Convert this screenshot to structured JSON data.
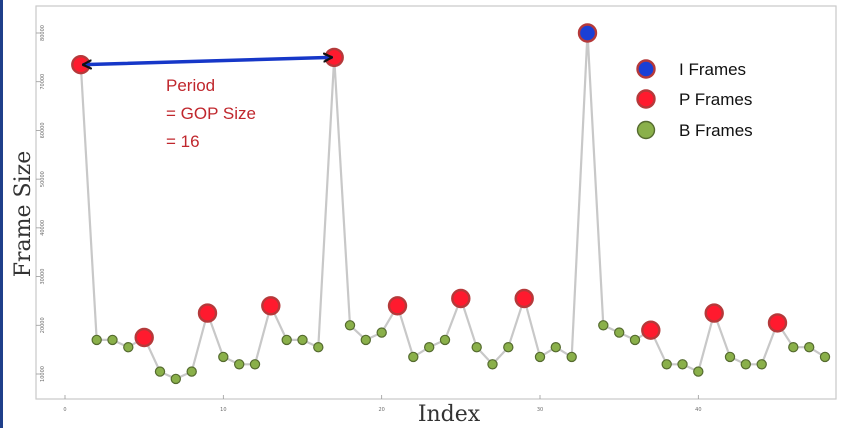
{
  "chart_data": {
    "type": "line",
    "xlabel": "Index",
    "ylabel": "Frame Size",
    "xlim": [
      0,
      48
    ],
    "ylim": [
      5000,
      83000
    ],
    "x_ticks": [
      0,
      10,
      20,
      30,
      40
    ],
    "y_ticks": [
      10000,
      20000,
      30000,
      40000,
      50000,
      60000,
      70000,
      80000
    ],
    "grid": false,
    "legend_position": "top-right",
    "legend": [
      {
        "label": "I Frames",
        "type": "I"
      },
      {
        "label": "P Frames",
        "type": "P"
      },
      {
        "label": "B Frames",
        "type": "B"
      }
    ],
    "annotation": {
      "lines": [
        "Period",
        "= GOP Size",
        "= 16"
      ],
      "from_x": 1,
      "to_x": 17
    },
    "colors": {
      "I": "#1a3fd6",
      "P": "#ff1a2e",
      "B": "#8ab04a",
      "outline_big": "#b5393a",
      "outline_small": "#556b2f",
      "line": "#c8c8c8",
      "arrow": "#1637c8",
      "annotation": "#c0272d"
    },
    "points": [
      {
        "x": 1,
        "y": 73500,
        "type": "P"
      },
      {
        "x": 2,
        "y": 17000,
        "type": "B"
      },
      {
        "x": 3,
        "y": 17000,
        "type": "B"
      },
      {
        "x": 4,
        "y": 15500,
        "type": "B"
      },
      {
        "x": 5,
        "y": 17500,
        "type": "P"
      },
      {
        "x": 6,
        "y": 10500,
        "type": "B"
      },
      {
        "x": 7,
        "y": 9000,
        "type": "B"
      },
      {
        "x": 8,
        "y": 10500,
        "type": "B"
      },
      {
        "x": 9,
        "y": 22500,
        "type": "P"
      },
      {
        "x": 10,
        "y": 13500,
        "type": "B"
      },
      {
        "x": 11,
        "y": 12000,
        "type": "B"
      },
      {
        "x": 12,
        "y": 12000,
        "type": "B"
      },
      {
        "x": 13,
        "y": 24000,
        "type": "P"
      },
      {
        "x": 14,
        "y": 17000,
        "type": "B"
      },
      {
        "x": 15,
        "y": 17000,
        "type": "B"
      },
      {
        "x": 16,
        "y": 15500,
        "type": "B"
      },
      {
        "x": 17,
        "y": 75000,
        "type": "P"
      },
      {
        "x": 18,
        "y": 20000,
        "type": "B"
      },
      {
        "x": 19,
        "y": 17000,
        "type": "B"
      },
      {
        "x": 20,
        "y": 18500,
        "type": "B"
      },
      {
        "x": 21,
        "y": 24000,
        "type": "P"
      },
      {
        "x": 22,
        "y": 13500,
        "type": "B"
      },
      {
        "x": 23,
        "y": 15500,
        "type": "B"
      },
      {
        "x": 24,
        "y": 17000,
        "type": "B"
      },
      {
        "x": 25,
        "y": 25500,
        "type": "P"
      },
      {
        "x": 26,
        "y": 15500,
        "type": "B"
      },
      {
        "x": 27,
        "y": 12000,
        "type": "B"
      },
      {
        "x": 28,
        "y": 15500,
        "type": "B"
      },
      {
        "x": 29,
        "y": 25500,
        "type": "P"
      },
      {
        "x": 30,
        "y": 13500,
        "type": "B"
      },
      {
        "x": 31,
        "y": 15500,
        "type": "B"
      },
      {
        "x": 32,
        "y": 13500,
        "type": "B"
      },
      {
        "x": 33,
        "y": 80000,
        "type": "I"
      },
      {
        "x": 34,
        "y": 20000,
        "type": "B"
      },
      {
        "x": 35,
        "y": 18500,
        "type": "B"
      },
      {
        "x": 36,
        "y": 17000,
        "type": "B"
      },
      {
        "x": 37,
        "y": 19000,
        "type": "P"
      },
      {
        "x": 38,
        "y": 12000,
        "type": "B"
      },
      {
        "x": 39,
        "y": 12000,
        "type": "B"
      },
      {
        "x": 40,
        "y": 10500,
        "type": "B"
      },
      {
        "x": 41,
        "y": 22500,
        "type": "P"
      },
      {
        "x": 42,
        "y": 13500,
        "type": "B"
      },
      {
        "x": 43,
        "y": 12000,
        "type": "B"
      },
      {
        "x": 44,
        "y": 12000,
        "type": "B"
      },
      {
        "x": 45,
        "y": 20500,
        "type": "P"
      },
      {
        "x": 46,
        "y": 15500,
        "type": "B"
      },
      {
        "x": 47,
        "y": 15500,
        "type": "B"
      },
      {
        "x": 48,
        "y": 13500,
        "type": "B"
      }
    ]
  }
}
